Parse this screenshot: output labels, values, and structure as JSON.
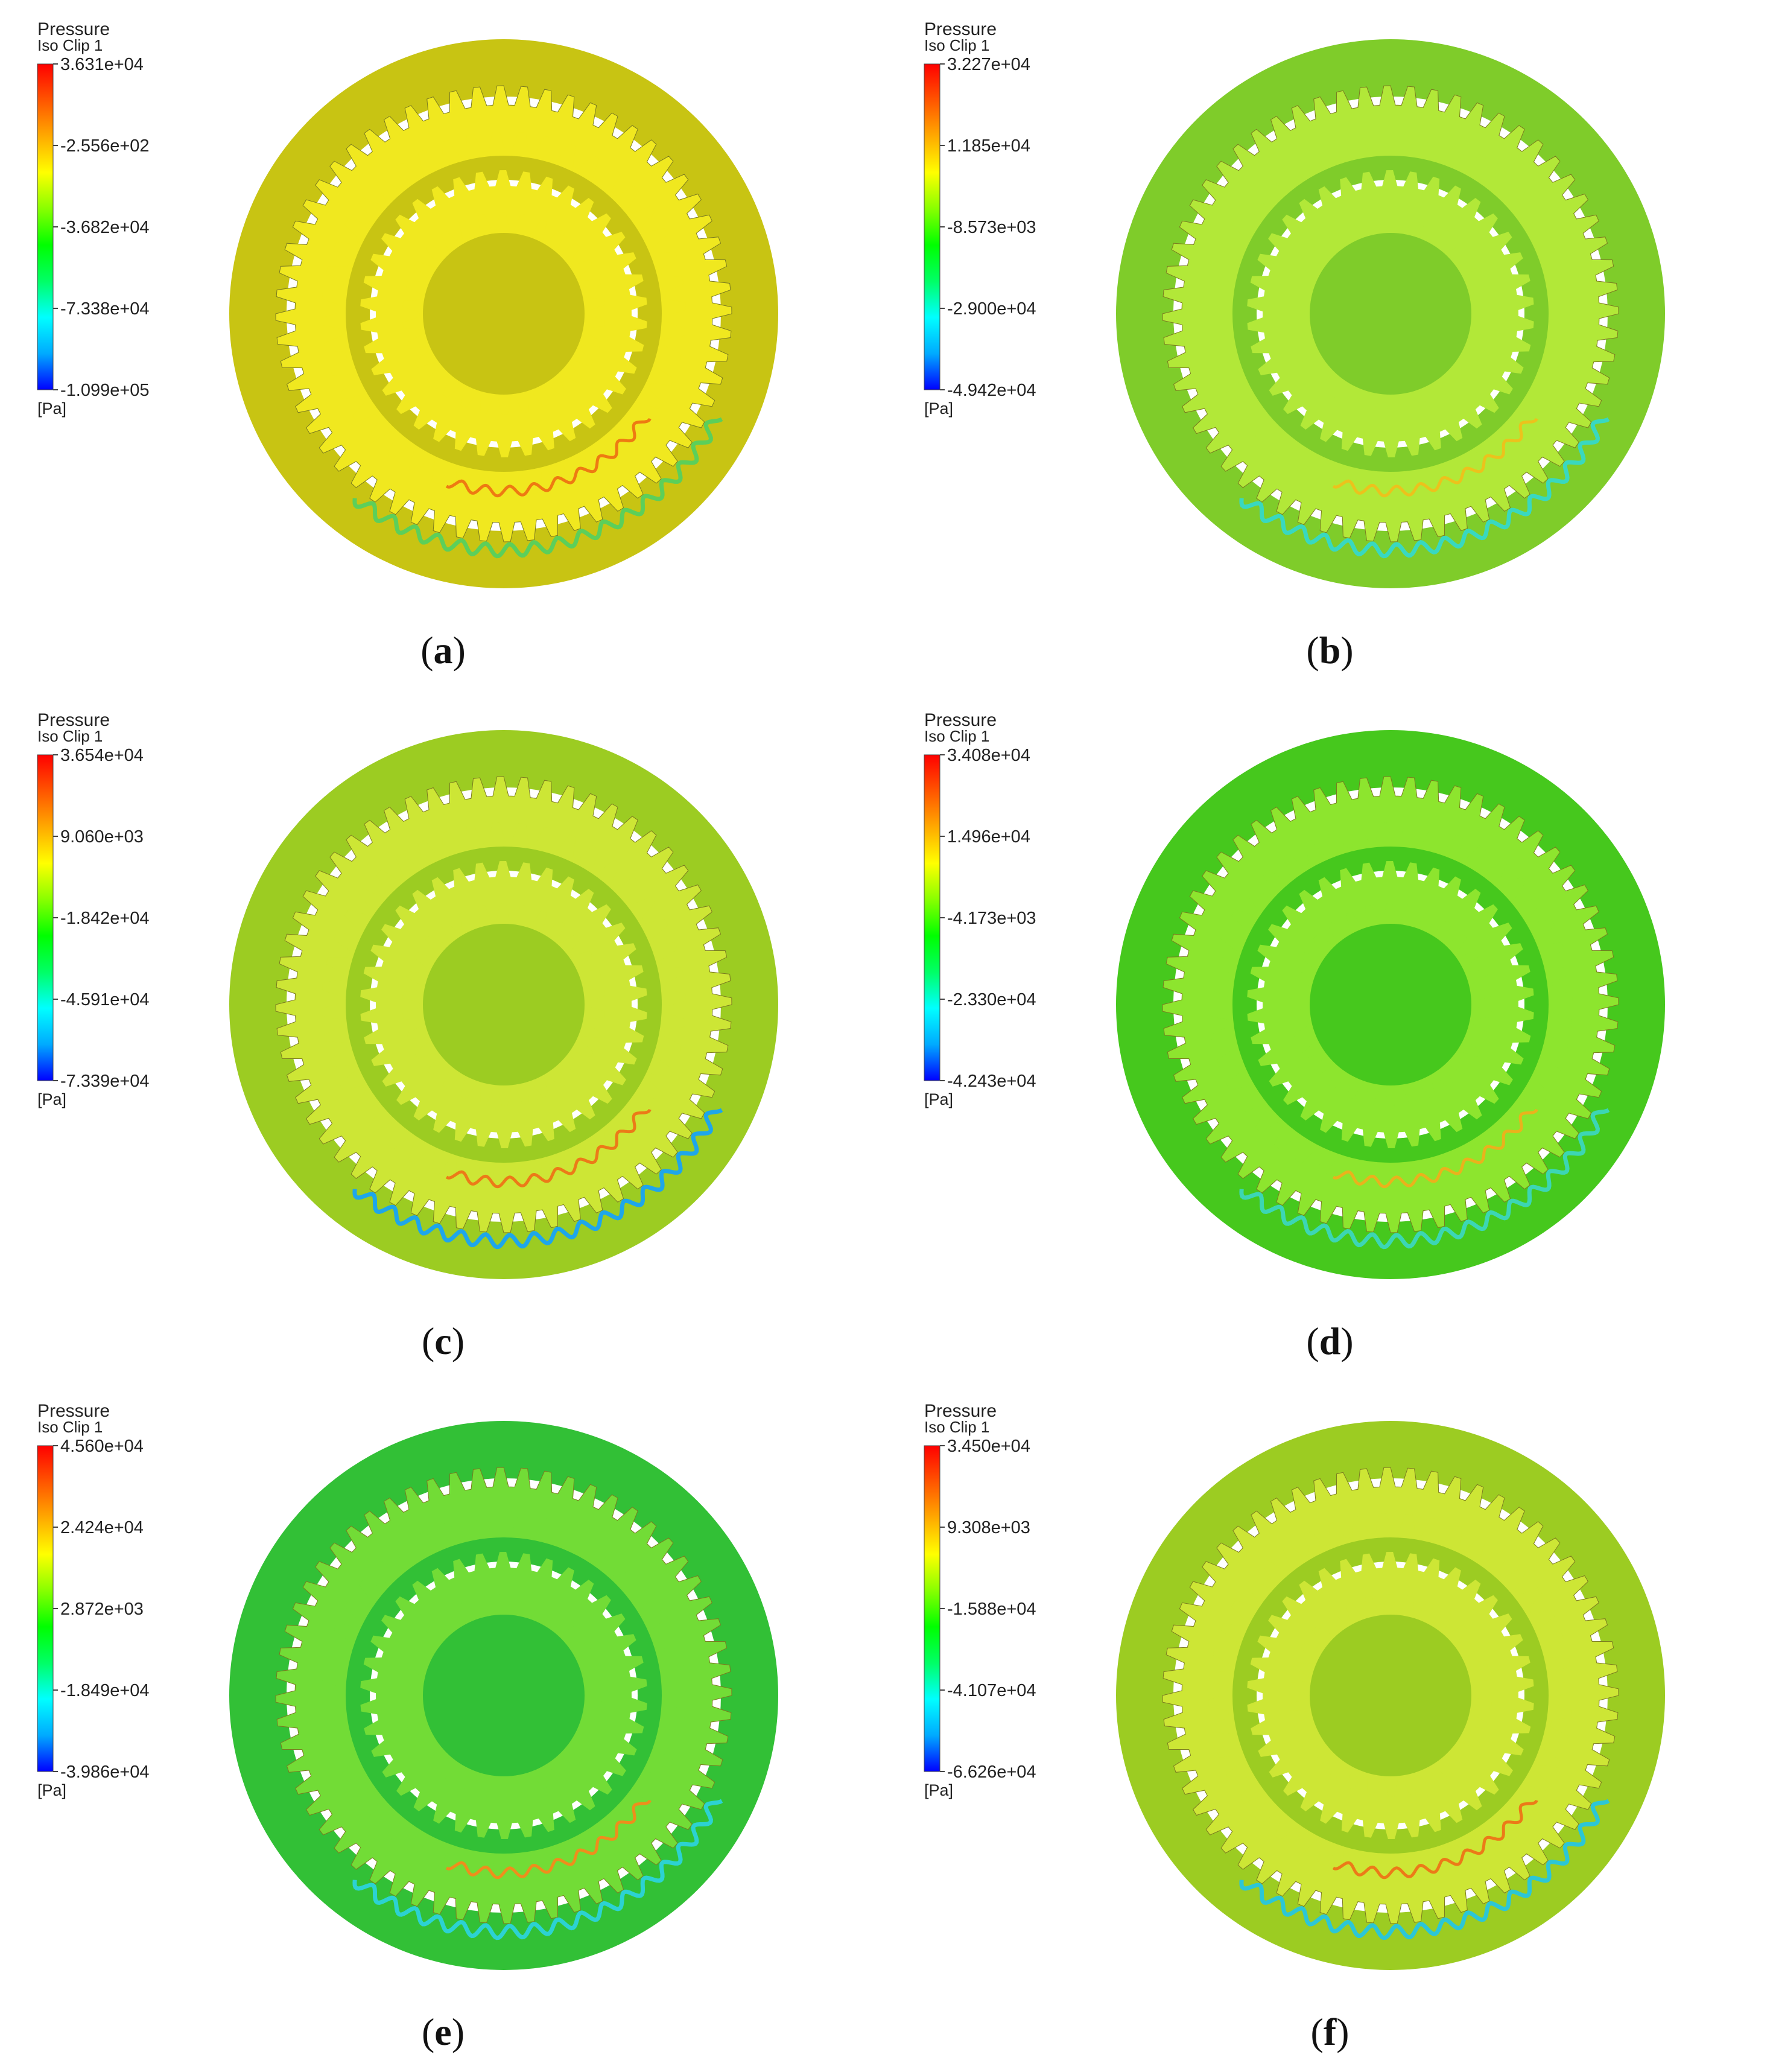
{
  "colorbar": {
    "stops": [
      "#0000ff",
      "#00aaff",
      "#00ffff",
      "#00ff66",
      "#00ff00",
      "#88ff00",
      "#ffff00",
      "#ffaa00",
      "#ff5500",
      "#ff0000"
    ]
  },
  "panels": [
    {
      "id": "a",
      "caption_open": "(",
      "caption_letter": "a",
      "caption_close": ")",
      "legend": {
        "title": "Pressure",
        "subtitle": "Iso Clip 1",
        "ticks": [
          "3.631e+04",
          "-2.556e+02",
          "-3.682e+04",
          "-7.338e+04",
          "-1.099e+05"
        ],
        "unit": "[Pa]"
      },
      "colors": {
        "bg": "#c8c413",
        "teeth": "#f0e81f",
        "wave": "#5ccf5a",
        "accent": "#ee7a12"
      },
      "teeth_counts": {
        "outer": 60,
        "mid": 44,
        "inner": 30
      }
    },
    {
      "id": "b",
      "caption_open": "(",
      "caption_letter": "b",
      "caption_close": ")",
      "legend": {
        "title": "Pressure",
        "subtitle": "Iso Clip 1",
        "ticks": [
          "3.227e+04",
          "1.185e+04",
          "-8.573e+03",
          "-2.900e+04",
          "-4.942e+04"
        ],
        "unit": "[Pa]"
      },
      "colors": {
        "bg": "#7fcc2a",
        "teeth": "#b2e838",
        "wave": "#39d8c0",
        "accent": "#ecc21c"
      },
      "teeth_counts": {
        "outer": 60,
        "mid": 44,
        "inner": 30
      }
    },
    {
      "id": "c",
      "caption_open": "(",
      "caption_letter": "c",
      "caption_close": ")",
      "legend": {
        "title": "Pressure",
        "subtitle": "Iso Clip 1",
        "ticks": [
          "3.654e+04",
          "9.060e+03",
          "-1.842e+04",
          "-4.591e+04",
          "-7.339e+04"
        ],
        "unit": "[Pa]"
      },
      "colors": {
        "bg": "#9ccc22",
        "teeth": "#cde635",
        "wave": "#1ea6ea",
        "accent": "#ec7a18"
      },
      "teeth_counts": {
        "outer": 60,
        "mid": 44,
        "inner": 30
      }
    },
    {
      "id": "d",
      "caption_open": "(",
      "caption_letter": "d",
      "caption_close": ")",
      "legend": {
        "title": "Pressure",
        "subtitle": "Iso Clip 1",
        "ticks": [
          "3.408e+04",
          "1.496e+04",
          "-4.173e+03",
          "-2.330e+04",
          "-4.243e+04"
        ],
        "unit": "[Pa]"
      },
      "colors": {
        "bg": "#46c81d",
        "teeth": "#8de52e",
        "wave": "#3cd6b4",
        "accent": "#eab21c"
      },
      "teeth_counts": {
        "outer": 60,
        "mid": 44,
        "inner": 30
      }
    },
    {
      "id": "e",
      "caption_open": "(",
      "caption_letter": "e",
      "caption_close": ")",
      "legend": {
        "title": "Pressure",
        "subtitle": "Iso Clip 1",
        "ticks": [
          "4.560e+04",
          "2.424e+04",
          "2.872e+03",
          "-1.849e+04",
          "-3.986e+04"
        ],
        "unit": "[Pa]"
      },
      "colors": {
        "bg": "#32c036",
        "teeth": "#72dc36",
        "wave": "#2cd2d2",
        "accent": "#ee8e1c"
      },
      "teeth_counts": {
        "outer": 60,
        "mid": 44,
        "inner": 30
      }
    },
    {
      "id": "f",
      "caption_open": "(",
      "caption_letter": "f",
      "caption_close": ")",
      "legend": {
        "title": "Pressure",
        "subtitle": "Iso Clip 1",
        "ticks": [
          "3.450e+04",
          "9.308e+03",
          "-1.588e+04",
          "-4.107e+04",
          "-6.626e+04"
        ],
        "unit": "[Pa]"
      },
      "colors": {
        "bg": "#9ccc22",
        "teeth": "#cde635",
        "wave": "#2cc6d6",
        "accent": "#ec7a18"
      },
      "teeth_counts": {
        "outer": 60,
        "mid": 44,
        "inner": 30
      }
    }
  ]
}
